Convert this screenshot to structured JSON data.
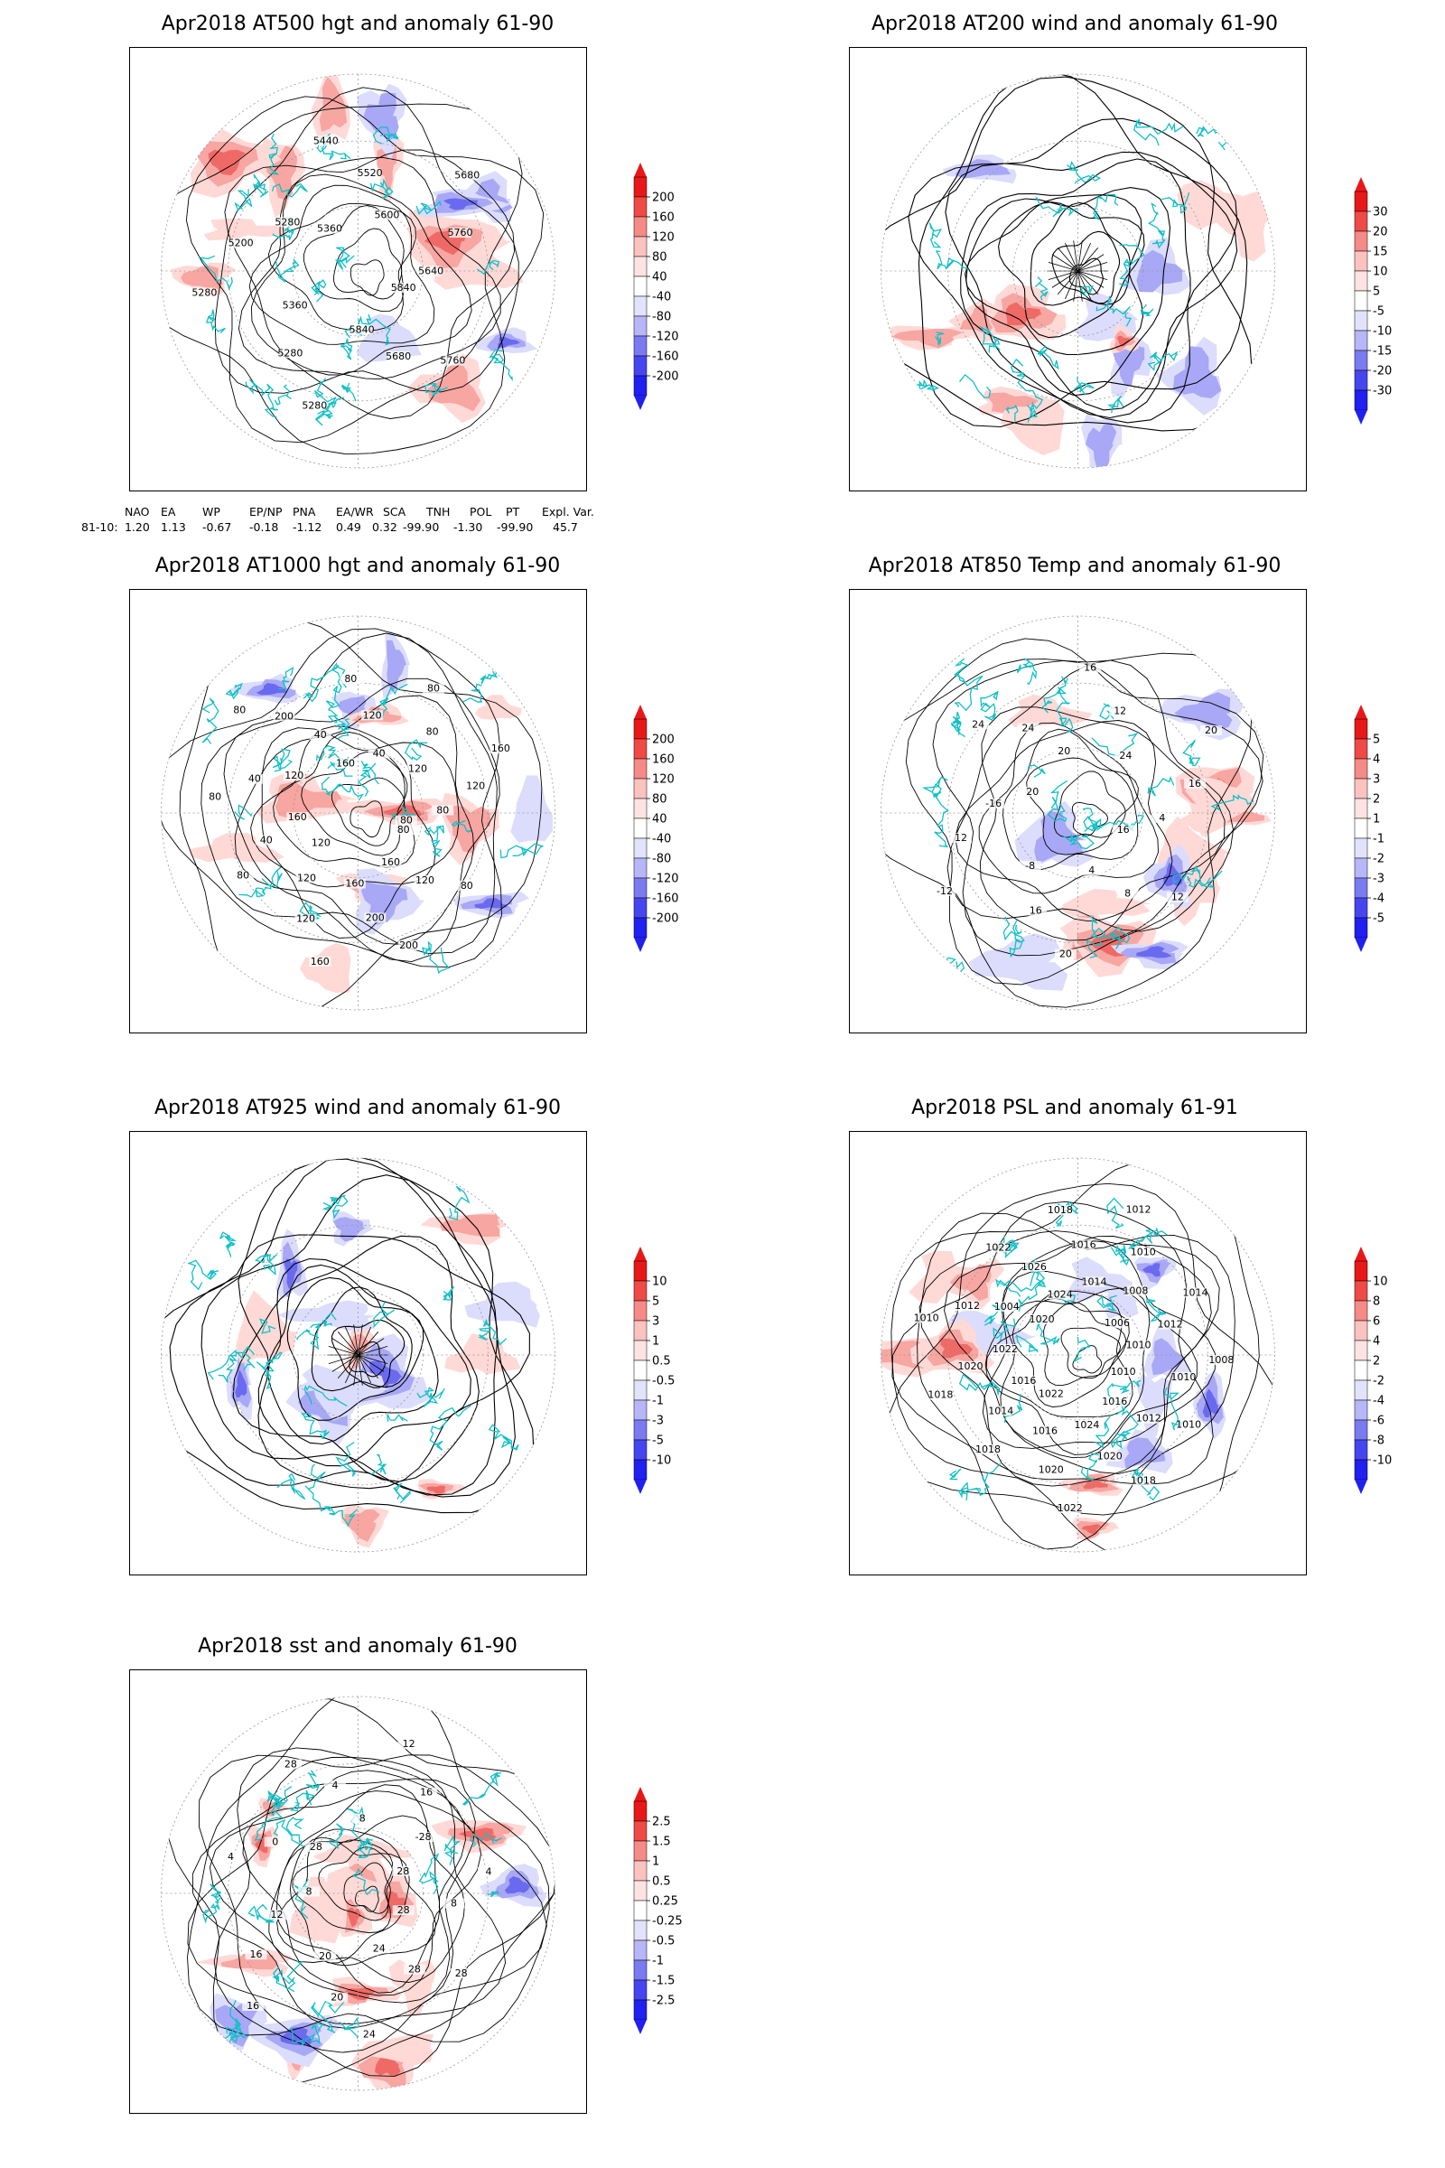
{
  "colors": {
    "warm": "#e81818",
    "cool": "#2020f0",
    "coast": "#12c0c8",
    "contour": "#000000",
    "grid": "#9a9a9a"
  },
  "panels": [
    {
      "id": "at500",
      "title": "Apr2018 AT500 hgt and anomaly 61-90",
      "colorbar": [
        "200",
        "160",
        "120",
        "80",
        "40",
        "-40",
        "-80",
        "-120",
        "-160",
        "-200"
      ],
      "contour_labels": [
        "5840",
        "5760",
        "5680",
        "5840",
        "5280",
        "5280",
        "5360",
        "5280",
        "5200",
        "5280",
        "5360",
        "5440",
        "5520",
        "5600",
        "5680",
        "5760",
        "5640"
      ]
    },
    {
      "id": "at200",
      "title": "Apr2018 AT200 wind and anomaly 61-90",
      "colorbar": [
        "30",
        "20",
        "15",
        "10",
        "5",
        "-5",
        "-10",
        "-15",
        "-20",
        "-30"
      ],
      "contour_labels": []
    },
    {
      "id": "at1000",
      "title": "Apr2018 AT1000 hgt and anomaly 61-90",
      "colorbar": [
        "200",
        "160",
        "120",
        "80",
        "40",
        "-40",
        "-80",
        "-120",
        "-160",
        "-200"
      ],
      "contour_labels": [
        "80",
        "80",
        "120",
        "160",
        "200",
        "200",
        "160",
        "160",
        "120",
        "120",
        "120",
        "80",
        "40",
        "160",
        "80",
        "40",
        "120",
        "80",
        "200",
        "40",
        "160",
        "80",
        "120",
        "40",
        "80",
        "80",
        "120",
        "160",
        "120",
        "80",
        "80"
      ]
    },
    {
      "id": "at850",
      "title": "Apr2018 AT850 Temp and anomaly 61-90",
      "colorbar": [
        "5",
        "4",
        "3",
        "2",
        "1",
        "-1",
        "-2",
        "-3",
        "-4",
        "-5"
      ],
      "contour_labels": [
        "16",
        "12",
        "8",
        "4",
        "20",
        "16",
        "-8",
        "-12",
        "12",
        "-16",
        "20",
        "24",
        "24",
        "20",
        "16",
        "12",
        "24",
        "20",
        "16",
        "4"
      ]
    },
    {
      "id": "at925",
      "title": "Apr2018 AT925 wind and anomaly 61-90",
      "colorbar": [
        "10",
        "5",
        "3",
        "1",
        "0.5",
        "-0.5",
        "-1",
        "-3",
        "-5",
        "-10"
      ],
      "contour_labels": []
    },
    {
      "id": "psl",
      "title": "Apr2018 PSL and anomaly 61-91",
      "colorbar": [
        "10",
        "8",
        "6",
        "4",
        "2",
        "-2",
        "-4",
        "-6",
        "-8",
        "-10"
      ],
      "contour_labels": [
        "1010",
        "1010",
        "1012",
        "1016",
        "1018",
        "1020",
        "1024",
        "1022",
        "1020",
        "1016",
        "1022",
        "1018",
        "1014",
        "1016",
        "1018",
        "1020",
        "1022",
        "1010",
        "1012",
        "1004",
        "1020",
        "1022",
        "1026",
        "1024",
        "1018",
        "1016",
        "1014",
        "1012",
        "1010",
        "1008",
        "1006",
        "1014",
        "1012",
        "1010",
        "1008",
        "1010"
      ]
    },
    {
      "id": "sst",
      "title": "Apr2018 sst and anomaly 61-90",
      "colorbar": [
        "2.5",
        "1.5",
        "1",
        "0.5",
        "0.25",
        "-0.25",
        "-0.5",
        "-1",
        "-1.5",
        "-2.5"
      ],
      "contour_labels": [
        "28",
        "28",
        "28",
        "24",
        "24",
        "20",
        "20",
        "16",
        "16",
        "12",
        "8",
        "4",
        "0",
        "28",
        "28",
        "4",
        "8",
        "12",
        "16",
        "-28",
        "28",
        "4",
        "8"
      ]
    }
  ],
  "indices": {
    "headers": [
      "",
      "NAO",
      "EA",
      "WP",
      "EP/NP",
      "PNA",
      "EA/WR",
      "SCA",
      "TNH",
      "POL",
      "PT",
      "Expl. Var."
    ],
    "row_label": "81-10:",
    "values": [
      "1.20",
      "1.13",
      "-0.67",
      "-0.18",
      "-1.12",
      "0.49",
      "0.32",
      "-99.90",
      "-1.30",
      "-99.90",
      "45.7"
    ]
  }
}
